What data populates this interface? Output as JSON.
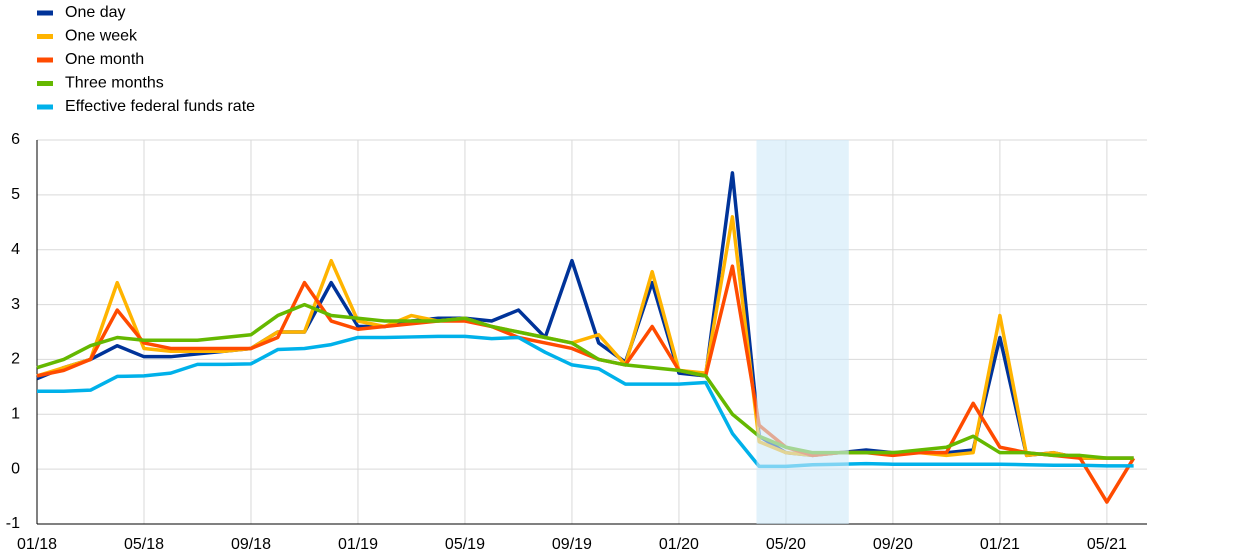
{
  "chart_data": {
    "type": "line",
    "x": [
      0,
      1,
      2,
      3,
      4,
      5,
      6,
      7,
      8,
      9,
      10,
      11,
      12,
      13,
      14,
      15,
      16,
      17,
      18,
      19,
      20,
      21,
      22,
      23,
      24,
      25,
      26,
      27,
      28,
      29,
      30,
      31,
      32,
      33,
      34,
      35,
      36,
      37,
      38,
      39,
      40,
      41
    ],
    "xlim": [
      0,
      41.5
    ],
    "xticks": [
      {
        "value": 0,
        "label": "01/18"
      },
      {
        "value": 4,
        "label": "05/18"
      },
      {
        "value": 8,
        "label": "09/18"
      },
      {
        "value": 12,
        "label": "01/19"
      },
      {
        "value": 16,
        "label": "05/19"
      },
      {
        "value": 20,
        "label": "09/19"
      },
      {
        "value": 24,
        "label": "01/20"
      },
      {
        "value": 28,
        "label": "05/20"
      },
      {
        "value": 32,
        "label": "09/20"
      },
      {
        "value": 36,
        "label": "01/21"
      },
      {
        "value": 40,
        "label": "05/21"
      }
    ],
    "ylim": [
      -1,
      6
    ],
    "yticks": [
      -1,
      0,
      1,
      2,
      3,
      4,
      5,
      6
    ],
    "grid": true,
    "legend": "top-left",
    "shaded_range": [
      26.9,
      30.35
    ],
    "shade_color": "#cfeaf8",
    "series": [
      {
        "name": "One day",
        "color": "#003399",
        "values": [
          1.65,
          1.85,
          2.0,
          2.25,
          2.05,
          2.05,
          2.1,
          2.15,
          2.2,
          2.5,
          2.5,
          3.4,
          2.6,
          2.6,
          2.7,
          2.75,
          2.75,
          2.7,
          2.9,
          2.4,
          3.8,
          2.3,
          1.95,
          3.4,
          1.75,
          1.7,
          5.4,
          0.6,
          0.3,
          0.25,
          0.3,
          0.35,
          0.3,
          0.3,
          0.3,
          0.35,
          2.4,
          0.25,
          0.3,
          0.2,
          0.2,
          0.2
        ]
      },
      {
        "name": "One week",
        "color": "#ffb400",
        "values": [
          1.7,
          1.85,
          2.0,
          3.4,
          2.2,
          2.15,
          2.15,
          2.15,
          2.2,
          2.5,
          2.5,
          3.8,
          2.7,
          2.6,
          2.8,
          2.7,
          2.75,
          2.6,
          2.5,
          2.4,
          2.3,
          2.45,
          1.9,
          3.6,
          1.8,
          1.75,
          4.6,
          0.5,
          0.3,
          0.25,
          0.3,
          0.3,
          0.3,
          0.3,
          0.25,
          0.3,
          2.8,
          0.25,
          0.3,
          0.2,
          0.2,
          0.2
        ]
      },
      {
        "name": "One month",
        "color": "#ff4b00",
        "values": [
          1.7,
          1.8,
          2.0,
          2.9,
          2.3,
          2.2,
          2.2,
          2.2,
          2.2,
          2.4,
          3.4,
          2.7,
          2.55,
          2.6,
          2.65,
          2.7,
          2.7,
          2.6,
          2.4,
          2.3,
          2.2,
          2.0,
          1.9,
          2.6,
          1.8,
          1.7,
          3.7,
          0.8,
          0.4,
          0.25,
          0.3,
          0.3,
          0.25,
          0.3,
          0.3,
          1.2,
          0.4,
          0.3,
          0.25,
          0.2,
          -0.6,
          0.2
        ]
      },
      {
        "name": "Three months",
        "color": "#65b800",
        "values": [
          1.85,
          2.0,
          2.25,
          2.4,
          2.35,
          2.35,
          2.35,
          2.4,
          2.45,
          2.8,
          3.0,
          2.8,
          2.75,
          2.7,
          2.7,
          2.7,
          2.75,
          2.6,
          2.5,
          2.4,
          2.3,
          2.0,
          1.9,
          1.85,
          1.8,
          1.7,
          1.0,
          0.6,
          0.4,
          0.3,
          0.3,
          0.3,
          0.3,
          0.35,
          0.4,
          0.6,
          0.3,
          0.3,
          0.25,
          0.25,
          0.2,
          0.2
        ]
      },
      {
        "name": "Effective federal funds rate",
        "color": "#00b1ea",
        "values": [
          1.42,
          1.42,
          1.44,
          1.69,
          1.7,
          1.75,
          1.91,
          1.91,
          1.92,
          2.18,
          2.2,
          2.27,
          2.4,
          2.4,
          2.41,
          2.42,
          2.42,
          2.38,
          2.4,
          2.13,
          1.9,
          1.83,
          1.55,
          1.55,
          1.55,
          1.58,
          0.65,
          0.05,
          0.05,
          0.08,
          0.09,
          0.1,
          0.09,
          0.09,
          0.09,
          0.09,
          0.09,
          0.08,
          0.07,
          0.07,
          0.06,
          0.06
        ]
      }
    ]
  }
}
